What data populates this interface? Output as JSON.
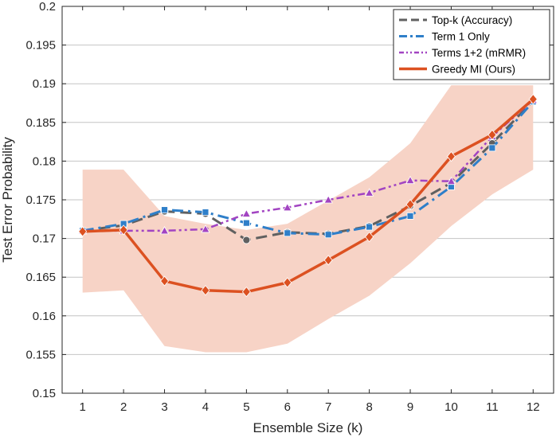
{
  "chart_data": {
    "type": "line",
    "xlabel": "Ensemble Size (k)",
    "ylabel": "Test Error Probability",
    "x": [
      1,
      2,
      3,
      4,
      5,
      6,
      7,
      8,
      9,
      10,
      11,
      12
    ],
    "xlim": [
      0.5,
      12.5
    ],
    "ylim": [
      0.15,
      0.2
    ],
    "yticks": [
      "0.15",
      "0.155",
      "0.16",
      "0.165",
      "0.17",
      "0.175",
      "0.18",
      "0.185",
      "0.19",
      "0.195",
      "0.2"
    ],
    "xticks": [
      "1",
      "2",
      "3",
      "4",
      "5",
      "6",
      "7",
      "8",
      "9",
      "10",
      "11",
      "12"
    ],
    "grid": "horizontal",
    "legend_position": "top-right",
    "band": {
      "color": "#f7d3c6",
      "upper": [
        0.1789,
        0.1789,
        0.1729,
        0.1719,
        0.1711,
        0.1719,
        0.1749,
        0.1779,
        0.1823,
        0.1898,
        0.1898,
        0.1898
      ],
      "lower": [
        0.163,
        0.1633,
        0.1561,
        0.1553,
        0.1553,
        0.1564,
        0.1596,
        0.1626,
        0.1668,
        0.1716,
        0.1757,
        0.1789
      ]
    },
    "series": [
      {
        "name": "Top-k (Accuracy)",
        "color": "#606060",
        "dash": "long-dash",
        "marker": "circle",
        "values": [
          0.171,
          0.1717,
          0.1735,
          0.1732,
          0.1698,
          0.1708,
          0.1706,
          0.1716,
          0.1742,
          0.1772,
          0.1823,
          0.1878
        ]
      },
      {
        "name": "Term 1 Only",
        "color": "#2f7fc9",
        "dash": "dash-dot",
        "marker": "square",
        "values": [
          0.171,
          0.1719,
          0.1737,
          0.1734,
          0.172,
          0.1707,
          0.1705,
          0.1715,
          0.1729,
          0.1767,
          0.1817,
          0.1877
        ]
      },
      {
        "name": "Terms 1+2 (mRMR)",
        "color": "#a244c2",
        "dash": "dash-dot-dot",
        "marker": "triangle",
        "values": [
          0.171,
          0.171,
          0.171,
          0.1712,
          0.1732,
          0.174,
          0.175,
          0.1759,
          0.1775,
          0.1774,
          0.1832,
          0.1879
        ]
      },
      {
        "name": "Greedy MI (Ours)",
        "color": "#dc5121",
        "dash": "solid",
        "marker": "diamond",
        "values": [
          0.1709,
          0.1711,
          0.1645,
          0.1633,
          0.1631,
          0.1643,
          0.1672,
          0.1702,
          0.1744,
          0.1806,
          0.1834,
          0.188
        ]
      }
    ]
  }
}
